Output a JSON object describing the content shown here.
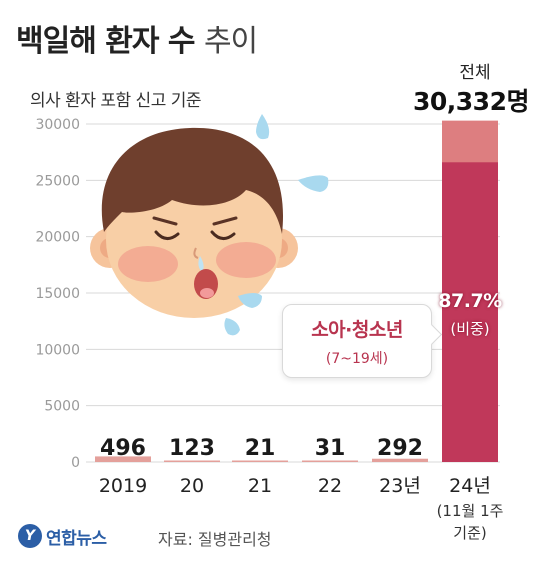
{
  "title": {
    "main": "백일해 환자 수",
    "suffix": "추이"
  },
  "subtitle": "의사 환자 포함 신고 기준",
  "total": {
    "label": "전체",
    "value": "30,332명"
  },
  "callout": {
    "group": "소아·청소년",
    "age_range": "(7~19세)"
  },
  "share": {
    "percent": "87.7%",
    "label": "(비중)"
  },
  "footer": {
    "logo_mark": "Y",
    "logo_text": "연합뉴스",
    "source": "자료: 질병관리청"
  },
  "colors": {
    "bar_small": "#e4a09b",
    "bar_total": "#dd7e80",
    "bar_youth": "#c0385a",
    "grid": "#d8d8d8",
    "axis_text": "#9a9a9a"
  },
  "illustration": "crying-child-face",
  "chart_data": {
    "type": "bar",
    "categories": [
      "2019",
      "20",
      "21",
      "22",
      "23년",
      "24년"
    ],
    "category_sublabels": [
      "",
      "",
      "",
      "",
      "",
      "(11월 1주"
    ],
    "category_sublabels2": [
      "",
      "",
      "",
      "",
      "",
      "기준)"
    ],
    "values": [
      496,
      123,
      21,
      31,
      292,
      30332
    ],
    "value_labels": [
      "496",
      "123",
      "21",
      "31",
      "292",
      ""
    ],
    "youth_share_2024": 0.877,
    "ylim": [
      0,
      30000
    ],
    "yticks": [
      0,
      5000,
      10000,
      15000,
      20000,
      25000,
      30000
    ],
    "ytick_labels": [
      "0",
      "5000",
      "10000",
      "15000",
      "20000",
      "25000",
      "30000"
    ],
    "grid": true
  }
}
